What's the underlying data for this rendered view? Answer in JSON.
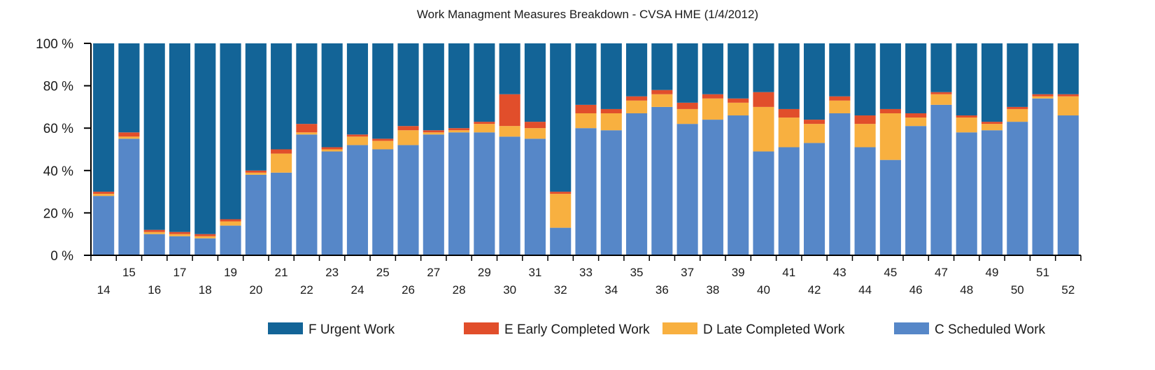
{
  "chart_data": {
    "type": "bar",
    "stacked": true,
    "title": "Work Managment Measures Breakdown - CVSA HME (1/4/2012)",
    "xlabel": "",
    "ylabel": "",
    "ylim": [
      0,
      100
    ],
    "y_ticks": [
      0,
      20,
      40,
      60,
      80,
      100
    ],
    "y_tick_labels": [
      "0 %",
      "20 %",
      "40 %",
      "60 %",
      "80 %",
      "100 %"
    ],
    "grid": false,
    "legend_position": "bottom-right",
    "categories": [
      "14",
      "15",
      "16",
      "17",
      "18",
      "19",
      "20",
      "21",
      "22",
      "23",
      "24",
      "25",
      "26",
      "27",
      "28",
      "29",
      "30",
      "31",
      "32",
      "33",
      "34",
      "35",
      "36",
      "37",
      "38",
      "39",
      "40",
      "41",
      "42",
      "43",
      "44",
      "45",
      "46",
      "47",
      "48",
      "49",
      "50",
      "51",
      "52"
    ],
    "series": [
      {
        "name": "C Scheduled Work",
        "color": "#5687C8",
        "values": [
          28,
          55,
          10,
          9,
          8,
          14,
          38,
          39,
          57,
          49,
          52,
          50,
          52,
          57,
          58,
          58,
          56,
          55,
          13,
          60,
          59,
          67,
          70,
          62,
          64,
          66,
          49,
          51,
          53,
          67,
          51,
          45,
          61,
          71,
          58,
          59,
          63,
          74,
          66
        ]
      },
      {
        "name": "D Late Completed Work",
        "color": "#F8B040",
        "values": [
          1,
          1,
          1,
          1,
          1,
          2,
          1,
          9,
          1,
          1,
          4,
          4,
          7,
          1,
          1,
          4,
          5,
          5,
          16,
          7,
          8,
          6,
          6,
          7,
          10,
          6,
          21,
          14,
          9,
          6,
          11,
          22,
          4,
          5,
          7,
          3,
          6,
          1,
          9
        ]
      },
      {
        "name": "E Early Completed Work",
        "color": "#E14E2B",
        "values": [
          1,
          2,
          1,
          1,
          1,
          1,
          1,
          2,
          4,
          1,
          1,
          1,
          2,
          1,
          1,
          1,
          15,
          3,
          1,
          4,
          2,
          2,
          2,
          3,
          2,
          2,
          7,
          4,
          2,
          2,
          4,
          2,
          2,
          1,
          1,
          1,
          1,
          1,
          1
        ]
      },
      {
        "name": "F Urgent Work",
        "color": "#136497",
        "values": [
          70,
          42,
          88,
          89,
          90,
          83,
          60,
          50,
          38,
          49,
          43,
          45,
          39,
          41,
          40,
          37,
          24,
          37,
          70,
          29,
          31,
          25,
          22,
          28,
          24,
          26,
          23,
          31,
          36,
          25,
          34,
          31,
          33,
          23,
          34,
          37,
          30,
          24,
          24
        ]
      }
    ],
    "legend_order": [
      "F Urgent Work",
      "E Early Completed Work",
      "D Late Completed Work",
      "C Scheduled Work"
    ]
  }
}
